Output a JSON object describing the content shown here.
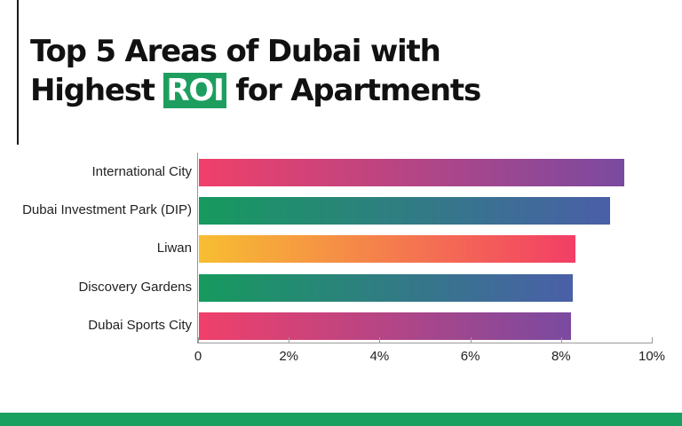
{
  "title": {
    "line1": "Top 5 Areas of Dubai with",
    "line2_pre": "Highest",
    "line2_highlight": "ROI",
    "line2_post": "for Apartments"
  },
  "colors": {
    "highlight": "#1e9e5e",
    "footer": "#17a05f",
    "pink_purple": [
      "#f0406a",
      "#7a4aa0"
    ],
    "green_blue": [
      "#169a5e",
      "#4a5fa8"
    ],
    "yellow_pink": [
      "#f7be32",
      "#f23e66"
    ]
  },
  "chart_data": {
    "type": "bar",
    "orientation": "horizontal",
    "title": "Top 5 Areas of Dubai with Highest ROI for Apartments",
    "categories": [
      "International City",
      "Dubai Investment Park (DIP)",
      "Liwan",
      "Discovery Gardens",
      "Dubai Sports  City"
    ],
    "values": [
      9.37,
      9.06,
      8.3,
      8.24,
      8.2
    ],
    "unit": "%",
    "xlabel": "",
    "ylabel": "",
    "xlim": [
      0,
      10
    ],
    "xticks": [
      "0",
      "2%",
      "4%",
      "6%",
      "8%",
      "10%"
    ],
    "grid": false,
    "legend": null
  }
}
